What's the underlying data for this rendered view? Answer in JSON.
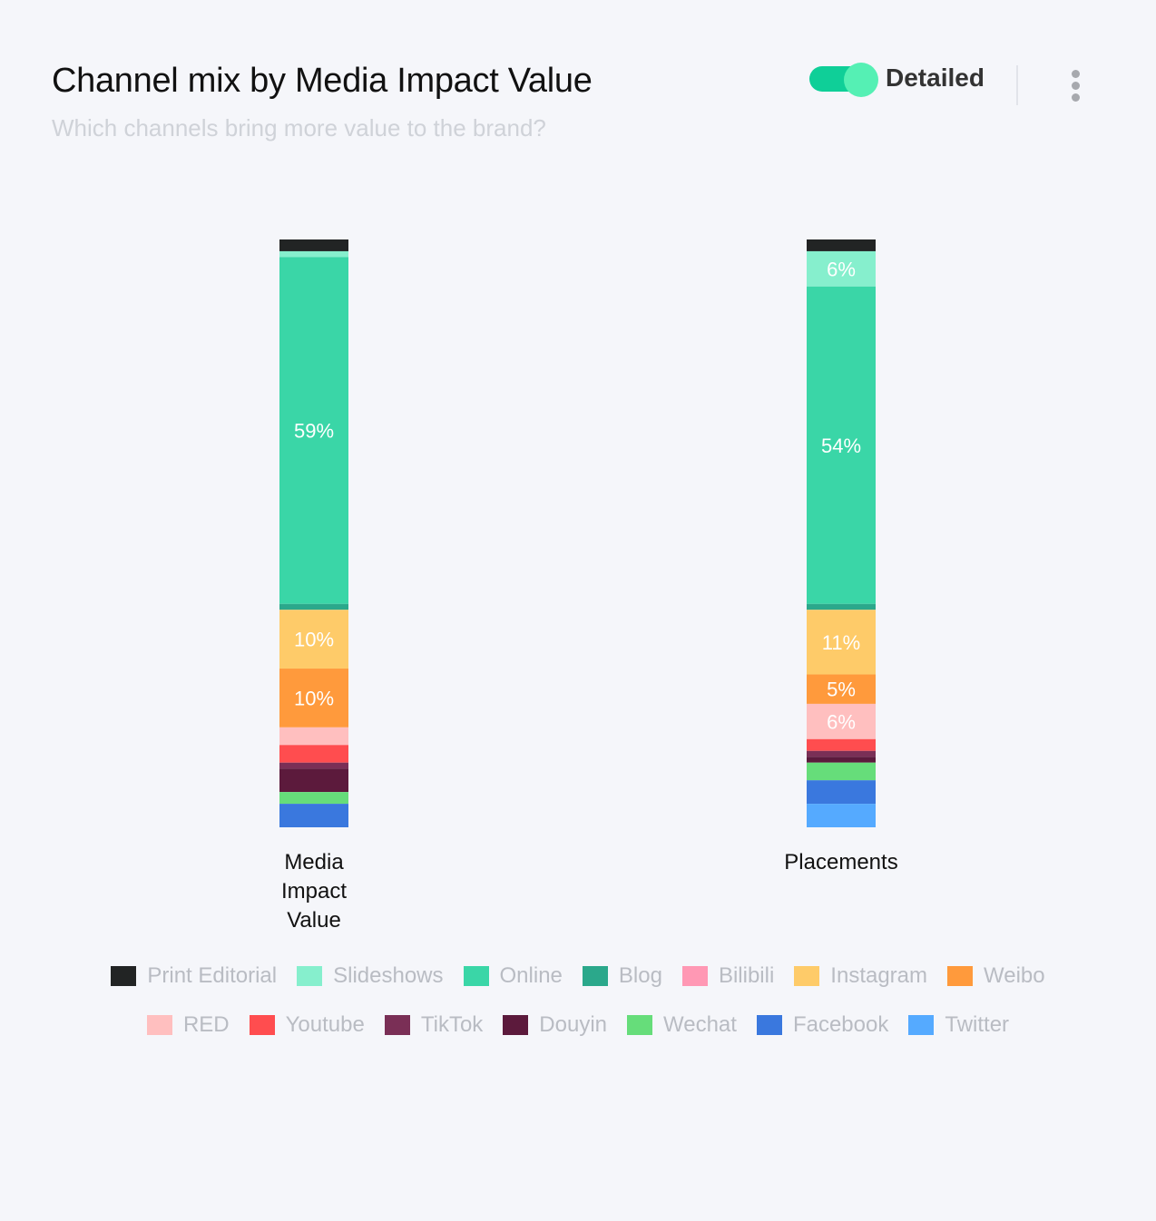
{
  "header": {
    "title": "Channel mix by Media Impact Value",
    "subtitle": "Which channels bring more value to the brand?",
    "toggle_label": "Detailed",
    "toggle_on": true
  },
  "icons": {
    "menu": "more-vertical-icon"
  },
  "chart_data": {
    "type": "bar",
    "stacked": true,
    "normalized_percent": true,
    "categories": [
      [
        "Media",
        "Impact",
        "Value"
      ],
      [
        "Placements"
      ]
    ],
    "series": [
      {
        "name": "Print Editorial",
        "color": "#222424",
        "values": [
          2.0,
          2.0
        ]
      },
      {
        "name": "Slideshows",
        "color": "#86efcd",
        "values": [
          1.0,
          6.0
        ]
      },
      {
        "name": "Online",
        "color": "#3ad6a7",
        "values": [
          59.0,
          54.0
        ]
      },
      {
        "name": "Blog",
        "color": "#2ba88b",
        "values": [
          1.0,
          1.0
        ]
      },
      {
        "name": "Bilibili",
        "color": "#ff98b4",
        "values": [
          0,
          0
        ]
      },
      {
        "name": "Instagram",
        "color": "#fecb69",
        "values": [
          10.0,
          11.0
        ]
      },
      {
        "name": "Weibo",
        "color": "#ff9a3c",
        "values": [
          10.0,
          5.0
        ]
      },
      {
        "name": "RED",
        "color": "#ffbfbf",
        "values": [
          3.0,
          6.0
        ]
      },
      {
        "name": "Youtube",
        "color": "#ff4d4f",
        "values": [
          3.0,
          2.0
        ]
      },
      {
        "name": "TikTok",
        "color": "#7a2f56",
        "values": [
          1.0,
          1.0
        ]
      },
      {
        "name": "Douyin",
        "color": "#5c1a3c",
        "values": [
          4.0,
          1.0
        ]
      },
      {
        "name": "Wechat",
        "color": "#66dd7a",
        "values": [
          2.0,
          3.0
        ]
      },
      {
        "name": "Facebook",
        "color": "#3a78de",
        "values": [
          4.0,
          4.0
        ]
      },
      {
        "name": "Twitter",
        "color": "#55aaff",
        "values": [
          0,
          4.0
        ]
      }
    ],
    "data_labels": [
      [
        null,
        null,
        "59%",
        null,
        null,
        "10%",
        "10%",
        null,
        null,
        null,
        null,
        null,
        null,
        null
      ],
      [
        null,
        "6%",
        "54%",
        null,
        null,
        "11%",
        "5%",
        "6%",
        null,
        null,
        null,
        null,
        null,
        null
      ]
    ],
    "ylim": [
      0,
      100
    ],
    "legend": {
      "position": "bottom",
      "rows": [
        [
          "Print Editorial",
          "Slideshows",
          "Online",
          "Blog",
          "Bilibili",
          "Instagram",
          "Weibo"
        ],
        [
          "RED",
          "Youtube",
          "TikTok",
          "Douyin",
          "Wechat",
          "Facebook",
          "Twitter"
        ]
      ]
    },
    "grid": false
  }
}
